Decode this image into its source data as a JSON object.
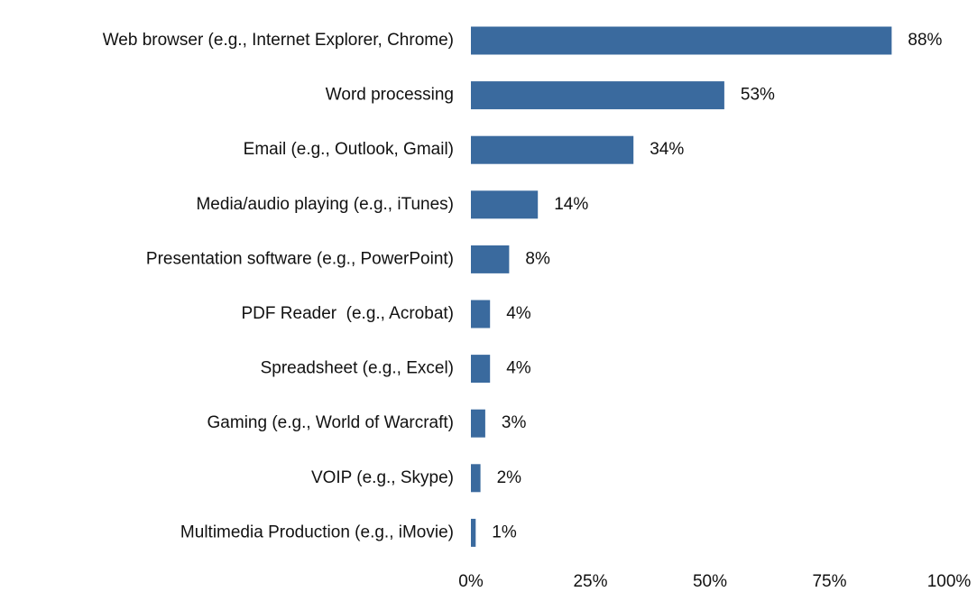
{
  "chart_data": {
    "type": "bar",
    "orientation": "horizontal",
    "categories": [
      "Web browser (e.g., Internet Explorer, Chrome)",
      "Word processing",
      "Email (e.g., Outlook, Gmail)",
      "Media/audio playing (e.g., iTunes)",
      "Presentation software (e.g., PowerPoint)",
      "PDF Reader  (e.g., Acrobat)",
      "Spreadsheet (e.g., Excel)",
      "Gaming (e.g., World of Warcraft)",
      "VOIP (e.g., Skype)",
      "Multimedia Production (e.g., iMovie)"
    ],
    "values": [
      88,
      53,
      34,
      14,
      8,
      4,
      4,
      3,
      2,
      1
    ],
    "value_labels": [
      "88%",
      "53%",
      "34%",
      "14%",
      "8%",
      "4%",
      "4%",
      "3%",
      "2%",
      "1%"
    ],
    "color": "#3a6a9e",
    "xlim": [
      0,
      100
    ],
    "xticks": [
      {
        "value": 0,
        "label": "0%"
      },
      {
        "value": 25,
        "label": "25%"
      },
      {
        "value": 50,
        "label": "50%"
      },
      {
        "value": 75,
        "label": "75%"
      },
      {
        "value": 100,
        "label": "100%"
      }
    ],
    "grid": false
  }
}
